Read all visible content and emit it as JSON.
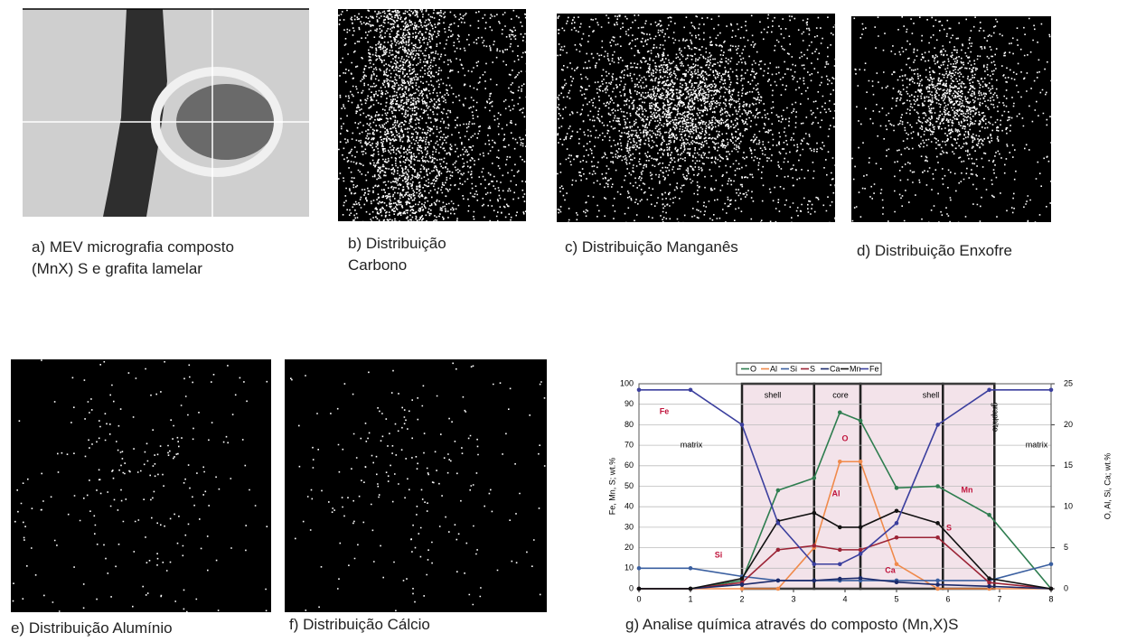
{
  "panels": [
    {
      "caption": "a) MEV micrografia composto (MnX) S e grafita lamelar"
    },
    {
      "caption": "b) Distribuição Carbono"
    },
    {
      "caption": "c) Distribuição Manganês"
    },
    {
      "caption": "d) Distribuição Enxofre"
    },
    {
      "caption": "e) Distribuição Alumínio"
    },
    {
      "caption": "f) Distribuição Cálcio"
    },
    {
      "caption": "g) Analise química através do composto (Mn,X)S"
    }
  ],
  "chart_data": {
    "type": "line",
    "ylabel": "Fe, Mn, S; wt.%",
    "y2label": "O, Al, Si, Ca; wt.%",
    "x": [
      0,
      1,
      2,
      2.7,
      3.4,
      3.9,
      4.3,
      5,
      5.8,
      6.8,
      8
    ],
    "xlim": [
      0,
      8
    ],
    "xticks": [
      0,
      1,
      2,
      3,
      4,
      5,
      6,
      7,
      8
    ],
    "ylim": [
      0,
      100
    ],
    "yticks": [
      0,
      10,
      20,
      30,
      40,
      50,
      60,
      70,
      80,
      90,
      100
    ],
    "y2lim": [
      0,
      25
    ],
    "y2ticks": [
      0,
      5,
      10,
      15,
      20,
      25
    ],
    "grid": true,
    "series": [
      {
        "name": "O",
        "color": "#2e7d4f",
        "axis": "y2",
        "values": [
          0,
          0,
          1,
          12,
          13.5,
          21.5,
          20.5,
          12.3,
          12.5,
          9,
          0
        ]
      },
      {
        "name": "Al",
        "color": "#f08a4b",
        "axis": "y2",
        "values": [
          0,
          0,
          0,
          0,
          5,
          15.5,
          15.5,
          3,
          0,
          0,
          0
        ]
      },
      {
        "name": "Si",
        "color": "#3a5fa0",
        "axis": "y2",
        "values": [
          2.5,
          2.5,
          1.5,
          1,
          1,
          1,
          1,
          1,
          1,
          1,
          3
        ]
      },
      {
        "name": "S",
        "color": "#9b2335",
        "values": [
          0,
          0,
          3,
          19,
          21,
          19,
          19,
          25,
          25,
          3,
          0
        ]
      },
      {
        "name": "Ca",
        "color": "#1b2a6b",
        "axis": "y2",
        "values": [
          0,
          0,
          0.5,
          1,
          1,
          1.2,
          1.3,
          0.8,
          0.5,
          0.3,
          0
        ]
      },
      {
        "name": "Mn",
        "color": "#111111",
        "values": [
          0,
          0,
          5,
          33,
          37,
          30,
          30,
          38,
          32,
          5,
          0
        ]
      },
      {
        "name": "Fe",
        "color": "#3b3f9e",
        "values": [
          97,
          97,
          80,
          32,
          12,
          12,
          17,
          32,
          80,
          97,
          97
        ]
      }
    ],
    "regions": [
      {
        "label": "shell",
        "x": [
          2,
          3.4
        ]
      },
      {
        "label": "core",
        "x": [
          3.4,
          4.3
        ]
      },
      {
        "label": "shell",
        "x": [
          4.3,
          5.9
        ]
      },
      {
        "label": "graphite",
        "x": [
          5.9,
          6.9
        ]
      }
    ],
    "matrix_labels": [
      "matrix",
      "matrix"
    ]
  }
}
